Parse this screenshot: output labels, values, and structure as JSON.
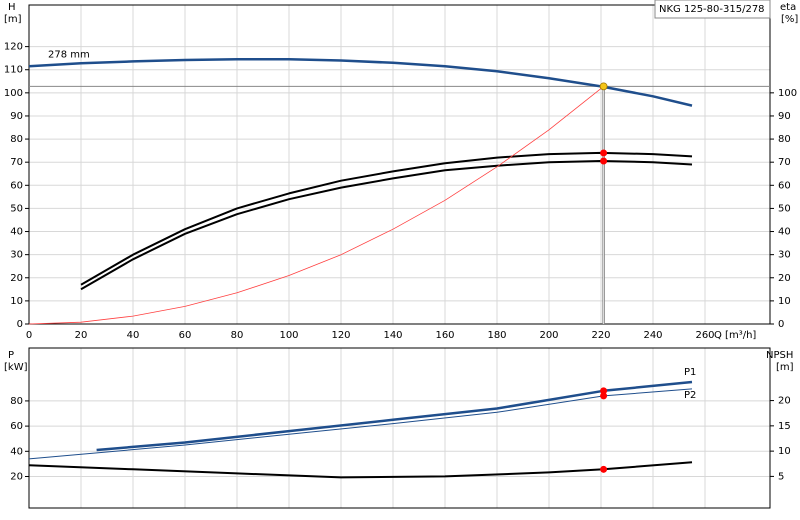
{
  "chart_data": [
    {
      "type": "line",
      "title": "NKG 125-80-315/278",
      "ylabel": "H",
      "ylabel_unit": "[m]",
      "y2label": "eta",
      "y2label_unit": "[%]",
      "xlabel": "Q [m³/h]",
      "xlim": [
        0,
        285
      ],
      "xticks": [
        0,
        20,
        40,
        60,
        80,
        100,
        120,
        140,
        160,
        180,
        200,
        220,
        240,
        260
      ],
      "show_xtick_labels": true,
      "ylim": [
        0,
        138
      ],
      "yticks": [
        0,
        10,
        20,
        30,
        40,
        50,
        60,
        70,
        80,
        90,
        100,
        110,
        120
      ],
      "y2lim": [
        0,
        138
      ],
      "y2ticks": [
        0,
        10,
        20,
        30,
        40,
        50,
        60,
        70,
        80,
        90,
        100
      ],
      "grid": true,
      "series": [
        {
          "name": "278 mm",
          "color": "#1f4e8c",
          "width": 2.5,
          "x": [
            0,
            20,
            40,
            60,
            80,
            100,
            120,
            140,
            160,
            180,
            200,
            220,
            240,
            255
          ],
          "values": [
            111.5,
            112.8,
            113.6,
            114.2,
            114.5,
            114.5,
            114,
            113,
            111.5,
            109.3,
            106.3,
            102.8,
            98.5,
            94.5
          ]
        },
        {
          "axis": "y2",
          "color": "#000000",
          "width": 2,
          "x": [
            20,
            40,
            60,
            80,
            100,
            120,
            140,
            160,
            180,
            200,
            220,
            240,
            255
          ],
          "values": [
            17,
            30,
            41,
            50,
            56.5,
            62,
            66,
            69.5,
            72,
            73.5,
            74,
            73.5,
            72.5
          ]
        },
        {
          "axis": "y2",
          "color": "#000000",
          "width": 2,
          "x": [
            20,
            40,
            60,
            80,
            100,
            120,
            140,
            160,
            180,
            200,
            220,
            240,
            255
          ],
          "values": [
            15,
            28,
            39,
            47.5,
            54,
            59,
            63,
            66.5,
            68.5,
            70,
            70.5,
            70,
            69
          ]
        },
        {
          "color": "#ff4040",
          "width": 0.8,
          "x": [
            0,
            20,
            40,
            60,
            80,
            100,
            120,
            140,
            160,
            180,
            200,
            221
          ],
          "values": [
            0,
            0.8,
            3.4,
            7.6,
            13.5,
            21,
            30,
            41,
            53.5,
            68,
            84,
            102.8
          ]
        }
      ],
      "points": [
        {
          "x": 221,
          "y": 102.8,
          "color": "#f5c518",
          "guide": true
        },
        {
          "x": 221,
          "y": 74,
          "axis": "y2",
          "color": "#ff0000"
        },
        {
          "x": 221,
          "y": 70.5,
          "axis": "y2",
          "color": "#ff0000"
        }
      ]
    },
    {
      "type": "line",
      "ylabel": "P",
      "ylabel_unit": "[kW]",
      "y2label": "NPSH",
      "y2label_unit": "[m]",
      "xlim": [
        0,
        285
      ],
      "xticks": [
        0,
        20,
        40,
        60,
        80,
        100,
        120,
        140,
        160,
        180,
        200,
        220,
        240,
        260
      ],
      "show_xtick_labels": false,
      "ylim": [
        -5,
        122
      ],
      "yticks": [
        20,
        40,
        60,
        80
      ],
      "y2lim": [
        -1.25,
        30.4
      ],
      "y2ticks": [
        5,
        10,
        15,
        20
      ],
      "grid": true,
      "series": [
        {
          "name": "P1",
          "color": "#1f4e8c",
          "width": 2.5,
          "x": [
            26,
            60,
            100,
            140,
            180,
            221,
            255
          ],
          "values": [
            41,
            47,
            56,
            65,
            74,
            88,
            95
          ]
        },
        {
          "name": "P2",
          "color": "#1f4e8c",
          "width": 1,
          "x": [
            0,
            60,
            100,
            140,
            180,
            221,
            255
          ],
          "values": [
            34,
            45,
            53.5,
            62,
            71,
            84,
            89.5
          ]
        },
        {
          "axis": "y2",
          "color": "#000000",
          "width": 2,
          "x": [
            0,
            40,
            80,
            120,
            160,
            200,
            221,
            255
          ],
          "values": [
            7.2,
            6.4,
            5.6,
            4.8,
            5.0,
            5.8,
            6.4,
            7.8
          ]
        }
      ],
      "points": [
        {
          "x": 221,
          "y": 88,
          "color": "#ff0000"
        },
        {
          "x": 221,
          "y": 84,
          "color": "#ff0000"
        },
        {
          "x": 221,
          "y": 6.4,
          "axis": "y2",
          "color": "#ff0000"
        }
      ]
    }
  ]
}
